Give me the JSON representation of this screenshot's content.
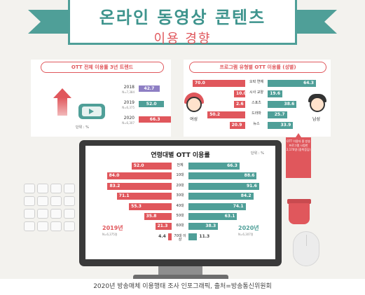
{
  "title": {
    "line1": "온라인 동영상 콘텐츠",
    "line2": "이용 경향"
  },
  "colors": {
    "red": "#e0575c",
    "teal": "#4f9f98",
    "purple": "#8e7fc4",
    "monitor": "#3a3a3a",
    "background": "#f3f2ee"
  },
  "caption": "2020년 방송매체 이용행태 조사 인포그래픽, 출처=방송통신위원회",
  "icons": [
    "up-arrow-icon",
    "video-player-icon",
    "woman-face-icon",
    "man-face-icon",
    "keyboard-icon",
    "cup-icon",
    "mouse-icon"
  ],
  "chart_data": [
    {
      "type": "bar",
      "title": "OTT 전체 이용률 3년 트렌드",
      "unit": "단위 : %",
      "categories": [
        "2018",
        "2019",
        "2020"
      ],
      "sample_sizes": [
        "N=7,384",
        "N=6,375",
        "N=6,307"
      ],
      "values": [
        42.7,
        52.0,
        66.3
      ],
      "colors": [
        "#8e7fc4",
        "#4f9f98",
        "#e0575c"
      ],
      "xlim": [
        0,
        100
      ]
    },
    {
      "type": "bar",
      "title": "프로그램 유형별 OTT 이용률 (성별)",
      "categories": [
        "오락 연예",
        "시사 교양",
        "스포츠",
        "드라마",
        "뉴스"
      ],
      "series": [
        {
          "name": "여성",
          "values": [
            70.0,
            10.0,
            2.6,
            50.2,
            20.9
          ]
        },
        {
          "name": "남성",
          "values": [
            64.3,
            19.6,
            38.6,
            25.7,
            33.9
          ]
        }
      ],
      "note": "OTT 이용자 중 방송프로그램 시청한 2,170명 (중복응답)",
      "xlim": [
        0,
        100
      ]
    },
    {
      "type": "bar",
      "title": "연령대별 OTT 이용률",
      "unit": "단위 : %",
      "categories": [
        "전체",
        "10대",
        "20대",
        "30대",
        "40대",
        "50대",
        "60대",
        "70대 이상"
      ],
      "series": [
        {
          "name": "2019년",
          "sample_size": "N=6,375명",
          "values": [
            52.0,
            84.0,
            83.2,
            71.1,
            55.3,
            35.8,
            21.3,
            4.4
          ]
        },
        {
          "name": "2020년",
          "sample_size": "N=6,307명",
          "values": [
            66.3,
            88.6,
            91.6,
            84.2,
            74.1,
            63.1,
            38.3,
            11.3
          ]
        }
      ],
      "xlim": [
        0,
        100
      ]
    }
  ]
}
